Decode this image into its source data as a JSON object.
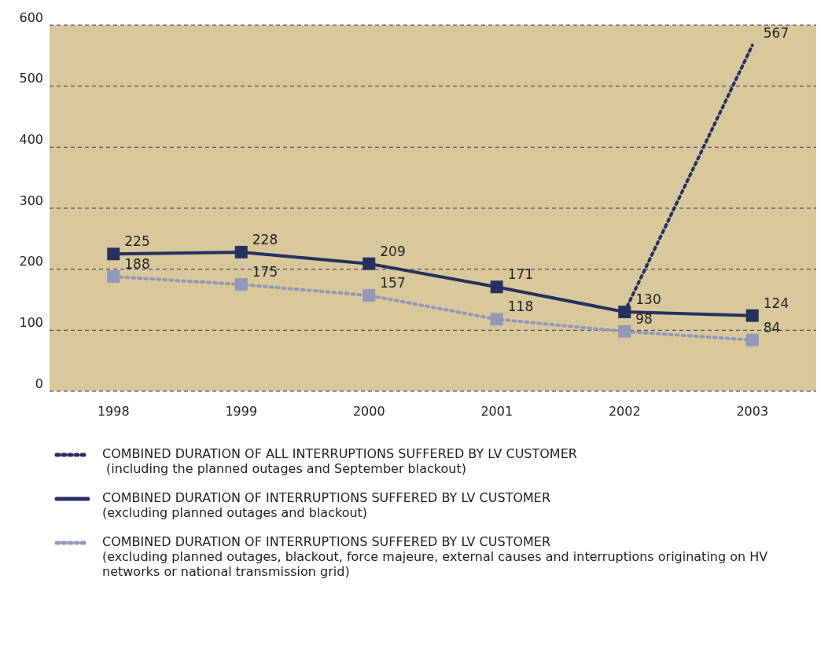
{
  "chart_data": {
    "type": "line",
    "categories": [
      "1998",
      "1999",
      "2000",
      "2001",
      "2002",
      "2003"
    ],
    "series": [
      {
        "name": "COMBINED DURATION OF ALL INTERRUPTIONS SUFFERED BY LV CUSTOMER\n (including the planned outages and September blackout)",
        "color": "#27305f",
        "values": [
          null,
          null,
          null,
          null,
          130,
          567
        ],
        "line_style": "dotted",
        "value_labels": [
          null,
          null,
          null,
          null,
          null,
          "567"
        ]
      },
      {
        "name": "COMBINED DURATION OF INTERRUPTIONS SUFFERED BY LV CUSTOMER\n(excluding planned outages and blackout)",
        "color": "#27305f",
        "values": [
          225,
          228,
          209,
          171,
          130,
          124
        ],
        "line_style": "solid",
        "marker": "square",
        "value_labels": [
          "225",
          "228",
          "209",
          "171",
          "130",
          "124"
        ]
      },
      {
        "name": "COMBINED DURATION OF INTERRUPTIONS SUFFERED BY LV CUSTOMER\n(excluding planned outages, blackout, force majeure, external causes and interruptions originating on HV networks or national transmission grid)",
        "color": "#9398b8",
        "values": [
          188,
          175,
          157,
          118,
          98,
          84
        ],
        "line_style": "dotted",
        "marker": "square",
        "value_labels": [
          "188",
          "175",
          "157",
          "118",
          "98",
          "84"
        ]
      }
    ],
    "ylim": [
      0,
      600
    ],
    "yticks": [
      0,
      100,
      200,
      300,
      400,
      500,
      600
    ],
    "grid": "y",
    "legend": "bottom"
  }
}
